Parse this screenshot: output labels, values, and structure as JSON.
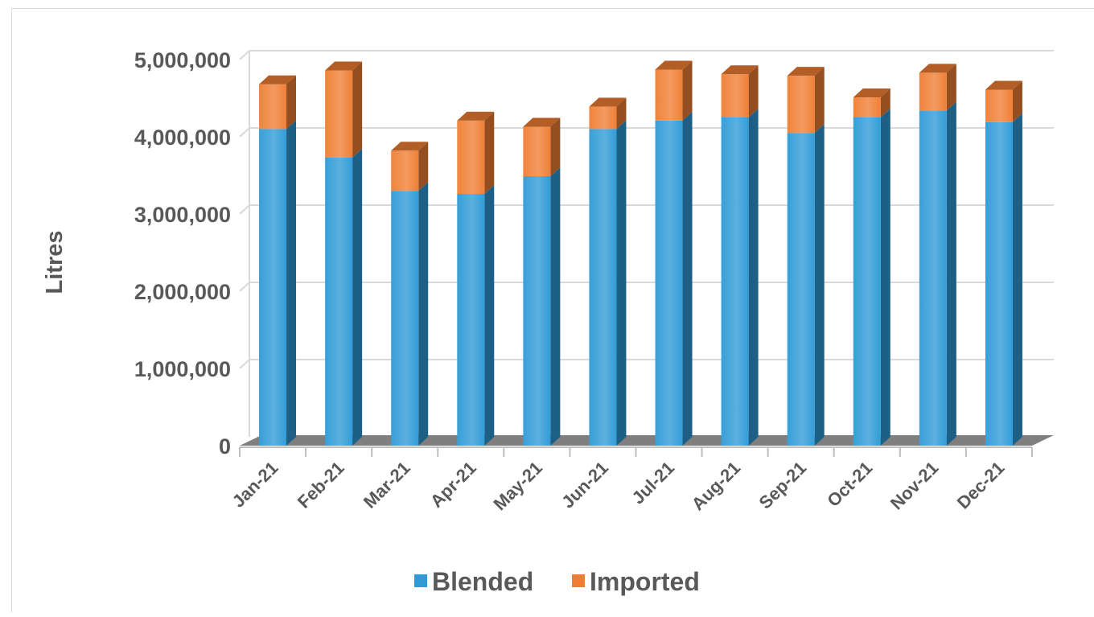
{
  "chart_data": {
    "type": "bar",
    "stacked": true,
    "three_d": true,
    "categories": [
      "Jan-21",
      "Feb-21",
      "Mar-21",
      "Apr-21",
      "May-21",
      "Jun-21",
      "Jul-21",
      "Aug-21",
      "Sep-21",
      "Oct-21",
      "Nov-21",
      "Dec-21"
    ],
    "series": [
      {
        "name": "Blended",
        "color": "#2e9ad6",
        "values": [
          4100000,
          3730000,
          3300000,
          3260000,
          3490000,
          4100000,
          4210000,
          4250000,
          4050000,
          4250000,
          4340000,
          4190000
        ]
      },
      {
        "name": "Imported",
        "color": "#ef7d33",
        "values": [
          580000,
          1130000,
          520000,
          950000,
          640000,
          290000,
          660000,
          560000,
          740000,
          260000,
          490000,
          420000
        ]
      }
    ],
    "title": "",
    "xlabel": "",
    "ylabel": "Litres",
    "ylim": [
      0,
      5000000
    ],
    "yticks": [
      0,
      1000000,
      2000000,
      3000000,
      4000000,
      5000000
    ],
    "ytick_labels": [
      "0",
      "1,000,000",
      "2,000,000",
      "3,000,000",
      "4,000,000",
      "5,000,000"
    ],
    "grid": true,
    "legend_position": "bottom"
  }
}
